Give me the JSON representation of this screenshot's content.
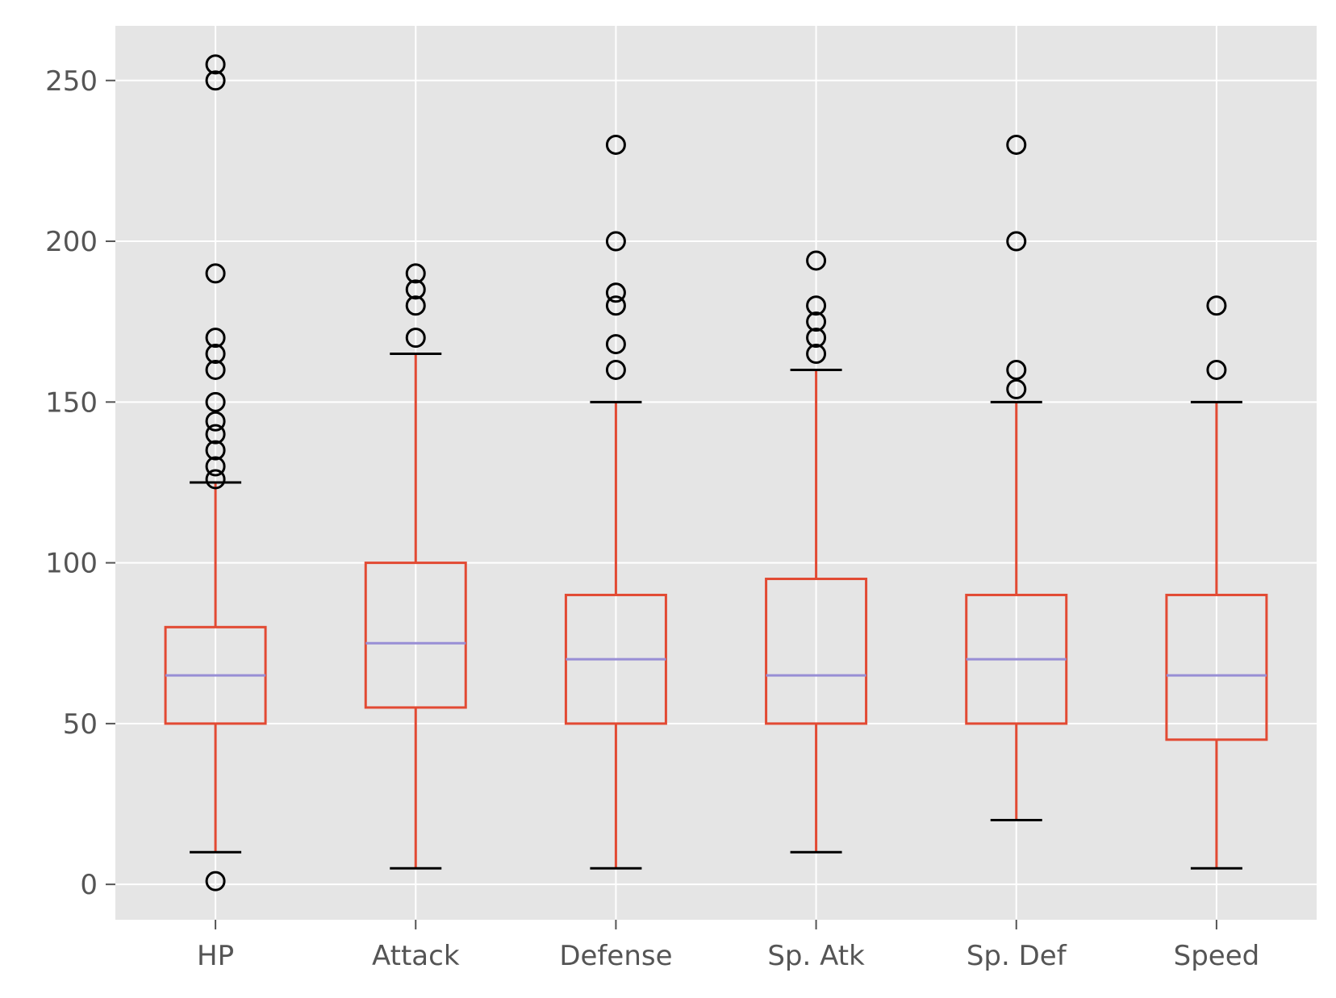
{
  "chart_data": {
    "type": "box",
    "title": "",
    "xlabel": "",
    "ylabel": "",
    "ylim": [
      -11,
      267
    ],
    "yticks": [
      0,
      50,
      100,
      150,
      200,
      250
    ],
    "grid": true,
    "legend": "none",
    "colors": {
      "background": "#e5e5e5",
      "grid": "#ffffff",
      "box": "#e24a33",
      "median": "#988ed5",
      "caps": "#000000",
      "flier": "#000000",
      "tick_text": "#555555"
    },
    "categories": [
      "HP",
      "Attack",
      "Defense",
      "Sp. Atk",
      "Sp. Def",
      "Speed"
    ],
    "boxes": [
      {
        "label": "HP",
        "whislo": 10,
        "q1": 50,
        "med": 65,
        "q3": 80,
        "whishi": 125,
        "fliers": [
          1,
          126,
          130,
          135,
          140,
          144,
          150,
          160,
          165,
          170,
          190,
          250,
          255
        ]
      },
      {
        "label": "Attack",
        "whislo": 5,
        "q1": 55,
        "med": 75,
        "q3": 100,
        "whishi": 165,
        "fliers": [
          170,
          180,
          185,
          190
        ]
      },
      {
        "label": "Defense",
        "whislo": 5,
        "q1": 50,
        "med": 70,
        "q3": 90,
        "whishi": 150,
        "fliers": [
          160,
          168,
          180,
          184,
          200,
          230
        ]
      },
      {
        "label": "Sp. Atk",
        "whislo": 10,
        "q1": 50,
        "med": 65,
        "q3": 95,
        "whishi": 160,
        "fliers": [
          165,
          170,
          175,
          180,
          194
        ]
      },
      {
        "label": "Sp. Def",
        "whislo": 20,
        "q1": 50,
        "med": 70,
        "q3": 90,
        "whishi": 150,
        "fliers": [
          154,
          160,
          200,
          230
        ]
      },
      {
        "label": "Speed",
        "whislo": 5,
        "q1": 45,
        "med": 65,
        "q3": 90,
        "whishi": 150,
        "fliers": [
          160,
          180
        ]
      }
    ]
  }
}
